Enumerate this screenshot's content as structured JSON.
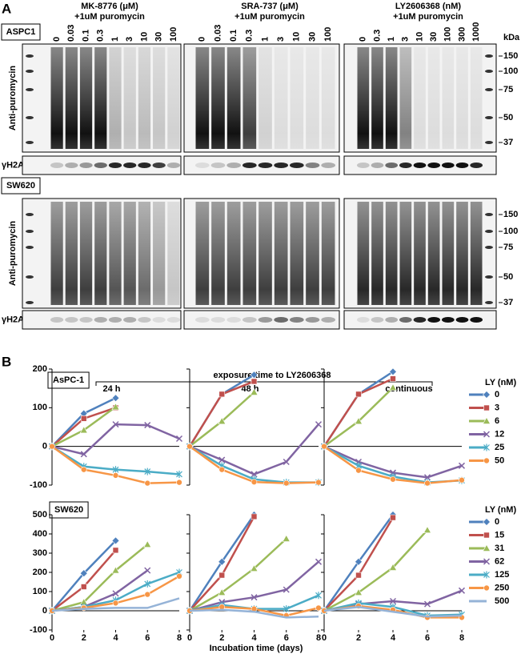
{
  "panel_a": {
    "label": "A",
    "kda": "kDa",
    "kda_markers": [
      "150",
      "100",
      "75",
      "50",
      "37"
    ],
    "blot_labels": [
      "Anti-puromycin",
      "γH2AX"
    ],
    "cell_lines": [
      "ASPC1",
      "SW620"
    ],
    "groups": [
      {
        "title": "MK-8776 (μM)",
        "subtitle": "+1uM puromycin",
        "lanes": [
          "0",
          "0.03",
          "0.1",
          "0.3",
          "1",
          "3",
          "10",
          "30",
          "100"
        ]
      },
      {
        "title": "SRA-737 (μM)",
        "subtitle": "+1uM puromycin",
        "lanes": [
          "0",
          "0.03",
          "0.1",
          "0.3",
          "1",
          "3",
          "10",
          "30",
          "100"
        ]
      },
      {
        "title": "LY2606368 (nM)",
        "subtitle": "+1uM puromycin",
        "lanes": [
          "0",
          "0.3",
          "1",
          "3",
          "10",
          "30",
          "100",
          "300",
          "1000"
        ]
      }
    ]
  },
  "panel_b": {
    "label": "B",
    "header": "exposure time to LY2606368",
    "xlabel": "Incubation time (days)"
  },
  "chart_data": [
    {
      "type": "line",
      "title": "AsPC-1",
      "legend_title": "LY (nM)",
      "x": [
        0,
        2,
        4,
        6,
        8
      ],
      "xlim": [
        0,
        8
      ],
      "ylim": [
        -100,
        200
      ],
      "yticks": [
        -100,
        0,
        100,
        200
      ],
      "legend": [
        {
          "name": "0",
          "color": "#4f81bd",
          "marker": "diamond"
        },
        {
          "name": "3",
          "color": "#c0504d",
          "marker": "square"
        },
        {
          "name": "6",
          "color": "#9bbb59",
          "marker": "triangle"
        },
        {
          "name": "12",
          "color": "#8064a2",
          "marker": "x"
        },
        {
          "name": "25",
          "color": "#4bacc6",
          "marker": "star"
        },
        {
          "name": "50",
          "color": "#f79646",
          "marker": "circle"
        }
      ],
      "panels": [
        {
          "title": "24 h",
          "series": [
            {
              "values": [
                0,
                85,
                125,
                null,
                null
              ]
            },
            {
              "values": [
                0,
                72,
                100,
                null,
                null
              ]
            },
            {
              "values": [
                0,
                42,
                102,
                null,
                null
              ]
            },
            {
              "values": [
                0,
                -20,
                57,
                55,
                20
              ]
            },
            {
              "values": [
                0,
                -52,
                -60,
                -65,
                -72
              ]
            },
            {
              "values": [
                0,
                -60,
                -75,
                -95,
                -93
              ]
            }
          ]
        },
        {
          "title": "48 h",
          "series": [
            {
              "values": [
                0,
                135,
                185,
                null,
                null
              ]
            },
            {
              "values": [
                0,
                135,
                168,
                null,
                null
              ]
            },
            {
              "values": [
                0,
                65,
                140,
                null,
                null
              ]
            },
            {
              "values": [
                0,
                -35,
                -72,
                -40,
                57
              ]
            },
            {
              "values": [
                0,
                -50,
                -85,
                -93,
                -93
              ]
            },
            {
              "values": [
                0,
                -60,
                -92,
                -95,
                -93
              ]
            }
          ]
        },
        {
          "title": "continuous",
          "series": [
            {
              "values": [
                0,
                135,
                193,
                null,
                null
              ]
            },
            {
              "values": [
                0,
                135,
                175,
                null,
                null
              ]
            },
            {
              "values": [
                0,
                65,
                152,
                null,
                null
              ]
            },
            {
              "values": [
                0,
                -40,
                -68,
                -80,
                -50
              ]
            },
            {
              "values": [
                0,
                -50,
                -78,
                -93,
                -88
              ]
            },
            {
              "values": [
                0,
                -62,
                -85,
                -95,
                -87
              ]
            }
          ]
        }
      ]
    },
    {
      "type": "line",
      "title": "SW620",
      "legend_title": "LY (nM)",
      "x": [
        0,
        2,
        4,
        6,
        8
      ],
      "xlim": [
        0,
        8
      ],
      "xticks": [
        0,
        2,
        4,
        6,
        8
      ],
      "ylim": [
        -100,
        500
      ],
      "yticks": [
        -100,
        0,
        100,
        200,
        300,
        400,
        500
      ],
      "legend": [
        {
          "name": "0",
          "color": "#4f81bd",
          "marker": "diamond"
        },
        {
          "name": "15",
          "color": "#c0504d",
          "marker": "square"
        },
        {
          "name": "31",
          "color": "#9bbb59",
          "marker": "triangle"
        },
        {
          "name": "62",
          "color": "#8064a2",
          "marker": "x"
        },
        {
          "name": "125",
          "color": "#4bacc6",
          "marker": "star"
        },
        {
          "name": "250",
          "color": "#f79646",
          "marker": "circle"
        },
        {
          "name": "500",
          "color": "#95b3d7",
          "marker": "none"
        }
      ],
      "panels": [
        {
          "title": null,
          "series": [
            {
              "values": [
                0,
                195,
                365,
                null,
                null
              ]
            },
            {
              "values": [
                0,
                125,
                315,
                null,
                null
              ]
            },
            {
              "values": [
                0,
                45,
                210,
                345,
                null
              ]
            },
            {
              "values": [
                0,
                20,
                90,
                210,
                null
              ]
            },
            {
              "values": [
                0,
                20,
                55,
                140,
                200
              ]
            },
            {
              "values": [
                0,
                15,
                40,
                85,
                180
              ]
            },
            {
              "values": [
                0,
                10,
                15,
                15,
                65
              ]
            }
          ]
        },
        {
          "title": null,
          "series": [
            {
              "values": [
                0,
                255,
                500,
                null,
                null
              ]
            },
            {
              "values": [
                0,
                185,
                490,
                null,
                null
              ]
            },
            {
              "values": [
                0,
                95,
                220,
                375,
                null
              ]
            },
            {
              "values": [
                0,
                45,
                70,
                110,
                255
              ]
            },
            {
              "values": [
                0,
                30,
                10,
                10,
                80
              ]
            },
            {
              "values": [
                0,
                20,
                10,
                -25,
                15
              ]
            },
            {
              "values": [
                0,
                5,
                -5,
                -35,
                -30
              ]
            }
          ]
        },
        {
          "title": null,
          "series": [
            {
              "values": [
                0,
                255,
                500,
                null,
                null
              ]
            },
            {
              "values": [
                0,
                185,
                485,
                null,
                null
              ]
            },
            {
              "values": [
                0,
                95,
                225,
                420,
                null
              ]
            },
            {
              "values": [
                0,
                35,
                50,
                35,
                105
              ]
            },
            {
              "values": [
                0,
                40,
                20,
                -25,
                -20
              ]
            },
            {
              "values": [
                0,
                25,
                5,
                -35,
                -35
              ]
            },
            {
              "values": [
                0,
                20,
                -5,
                -30,
                -25
              ]
            }
          ]
        }
      ]
    }
  ]
}
